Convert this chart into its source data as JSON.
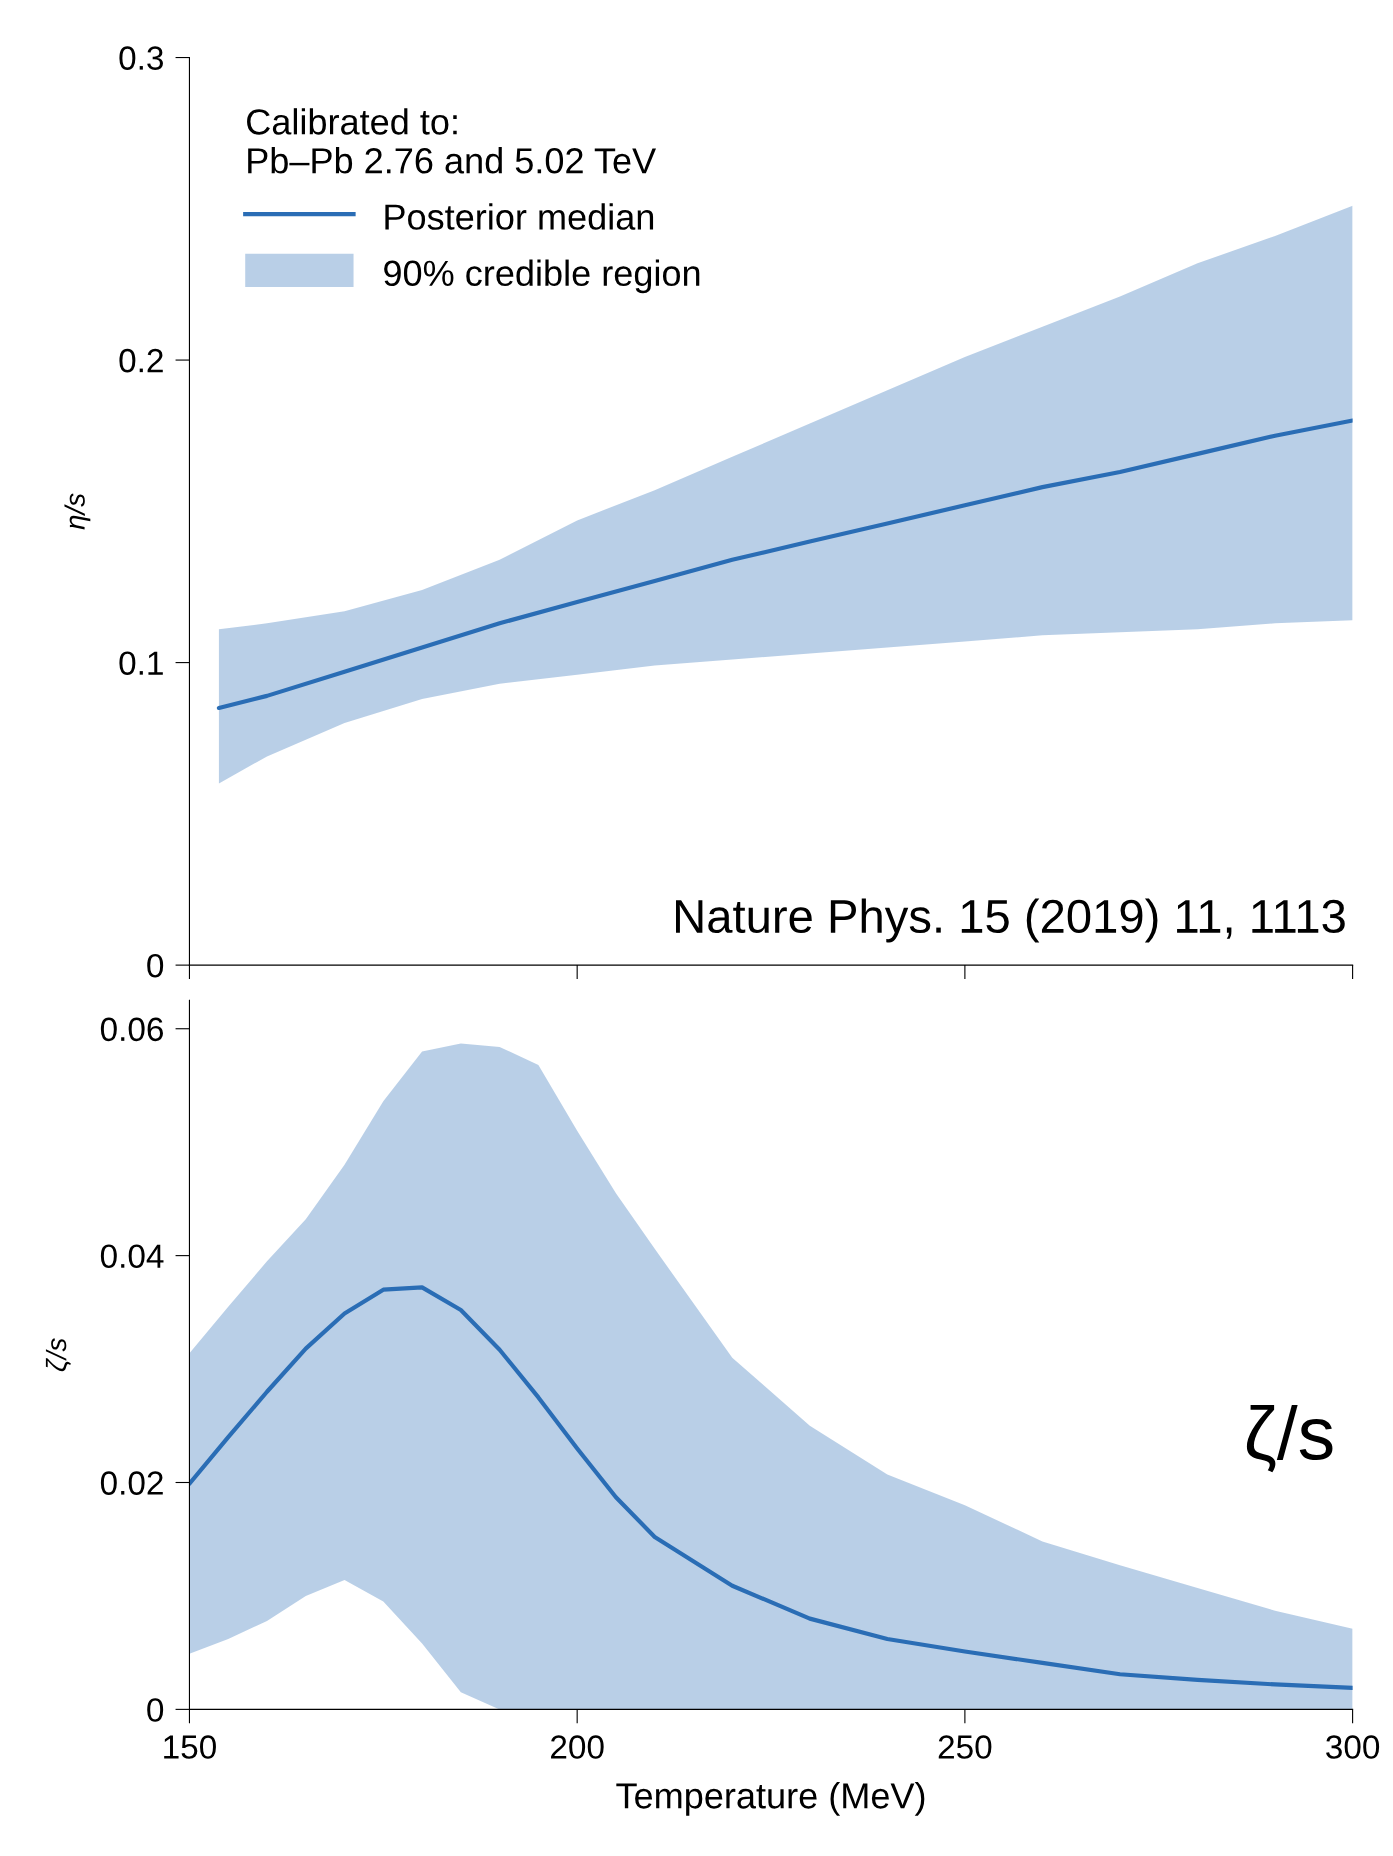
{
  "chart_data": [
    {
      "type": "line",
      "ylabel": "η/s",
      "legend_title": "Calibrated to:\nPb–Pb 2.76 and 5.02 TeV",
      "legend": "top left",
      "tick_labels": "y",
      "grid": false,
      "xlim": [
        150,
        300
      ],
      "xticks": [
        150,
        200,
        250,
        300
      ],
      "ylim": [
        0,
        0.3
      ],
      "yticks": [
        0,
        0.1,
        0.2,
        0.3
      ],
      "annotations": [
        "Nature Phys. 15 (2019) 11, 1113",
        "90% credible region"
      ],
      "series": [
        {
          "name": "Posterior median",
          "color": "#2a6db5",
          "x": [
            153.8,
            160,
            170,
            180,
            190,
            200,
            210,
            220,
            230,
            240,
            250,
            260,
            270,
            280,
            290,
            300
          ],
          "values": [
            0.085,
            0.089,
            0.097,
            0.105,
            0.113,
            0.12,
            0.127,
            0.134,
            0.14,
            0.146,
            0.152,
            0.158,
            0.163,
            0.169,
            0.175,
            0.18
          ],
          "lower": [
            0.06,
            0.069,
            0.08,
            0.088,
            0.093,
            0.096,
            0.099,
            0.101,
            0.103,
            0.105,
            0.107,
            0.109,
            0.11,
            0.111,
            0.113,
            0.114
          ],
          "upper": [
            0.111,
            0.113,
            0.117,
            0.124,
            0.134,
            0.147,
            0.157,
            0.168,
            0.179,
            0.19,
            0.201,
            0.211,
            0.221,
            0.232,
            0.241,
            0.251
          ]
        }
      ]
    },
    {
      "type": "line",
      "ylabel": "ζ/s",
      "xlabel": "Temperature (MeV)",
      "legend": false,
      "grid": false,
      "xlim": [
        150,
        300
      ],
      "xticks": [
        150,
        200,
        250,
        300
      ],
      "ylim": [
        0,
        0.0625
      ],
      "yticks": [
        0,
        0.02,
        0.04,
        0.06
      ],
      "annotations": [
        "ζ/s"
      ],
      "series": [
        {
          "color": "#2a6db5",
          "x": [
            150,
            155,
            160,
            165,
            170,
            175,
            180,
            185,
            190,
            195,
            200,
            205,
            210,
            220,
            230,
            240,
            250,
            260,
            270,
            280,
            290,
            300
          ],
          "values": [
            0.0199,
            0.024,
            0.028,
            0.0318,
            0.0349,
            0.037,
            0.0372,
            0.0352,
            0.0317,
            0.0275,
            0.023,
            0.0187,
            0.0152,
            0.0109,
            0.008,
            0.0062,
            0.0051,
            0.0041,
            0.0031,
            0.0026,
            0.0022,
            0.0019
          ],
          "lower": [
            0.0049,
            0.0062,
            0.0078,
            0.01,
            0.0114,
            0.0095,
            0.0058,
            0.0015,
            0,
            0,
            0,
            0,
            0,
            0,
            0,
            0,
            0,
            0,
            0,
            0,
            0,
            0
          ],
          "upper": [
            0.0314,
            0.0355,
            0.0395,
            0.0432,
            0.048,
            0.0536,
            0.058,
            0.0587,
            0.0584,
            0.0568,
            0.051,
            0.0455,
            0.0406,
            0.031,
            0.025,
            0.0207,
            0.018,
            0.0148,
            0.0127,
            0.0107,
            0.0087,
            0.0071
          ]
        }
      ]
    }
  ]
}
